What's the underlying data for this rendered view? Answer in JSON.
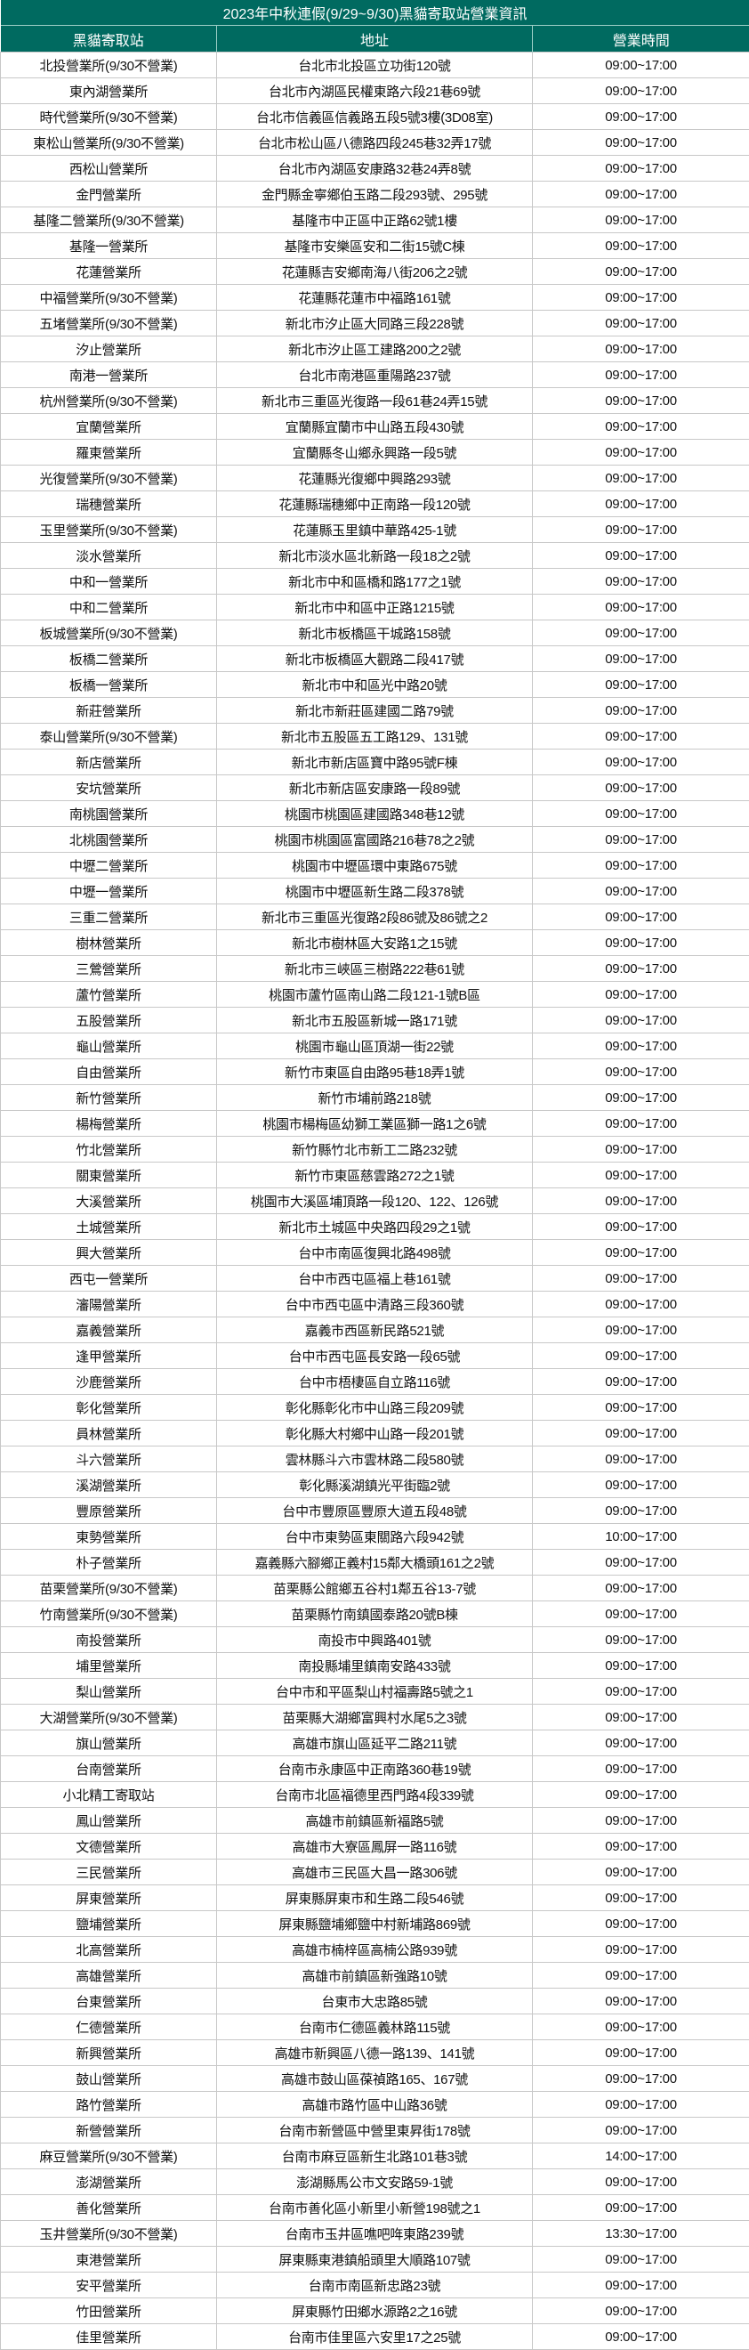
{
  "title": "2023年中秋連假(9/29~9/30)黑貓寄取站營業資訊",
  "columns": [
    "黑貓寄取站",
    "地址",
    "營業時間"
  ],
  "colors": {
    "header_bg": "#006a60",
    "header_text": "#ffffff",
    "border": "#c8c8c8"
  },
  "rows": [
    [
      "北投營業所(9/30不營業)",
      "台北市北投區立功街120號",
      "09:00~17:00"
    ],
    [
      "東內湖營業所",
      "台北市內湖區民權東路六段21巷69號",
      "09:00~17:00"
    ],
    [
      "時代營業所(9/30不營業)",
      "台北市信義區信義路五段5號3樓(3D08室)",
      "09:00~17:00"
    ],
    [
      "東松山營業所(9/30不營業)",
      "台北市松山區八德路四段245巷32弄17號",
      "09:00~17:00"
    ],
    [
      "西松山營業所",
      "台北市內湖區安康路32巷24弄8號",
      "09:00~17:00"
    ],
    [
      "金門營業所",
      "金門縣金寧鄉伯玉路二段293號、295號",
      "09:00~17:00"
    ],
    [
      "基隆二營業所(9/30不營業)",
      "基隆市中正區中正路62號1樓",
      "09:00~17:00"
    ],
    [
      "基隆一營業所",
      "基隆市安樂區安和二街15號C棟",
      "09:00~17:00"
    ],
    [
      "花蓮營業所",
      "花蓮縣吉安鄉南海八街206之2號",
      "09:00~17:00"
    ],
    [
      "中福營業所(9/30不營業)",
      "花蓮縣花蓮市中福路161號",
      "09:00~17:00"
    ],
    [
      "五堵營業所(9/30不營業)",
      "新北市汐止區大同路三段228號",
      "09:00~17:00"
    ],
    [
      "汐止營業所",
      "新北市汐止區工建路200之2號",
      "09:00~17:00"
    ],
    [
      "南港一營業所",
      "台北市南港區重陽路237號",
      "09:00~17:00"
    ],
    [
      "杭州營業所(9/30不營業)",
      "新北市三重區光復路一段61巷24弄15號",
      "09:00~17:00"
    ],
    [
      "宜蘭營業所",
      "宜蘭縣宜蘭市中山路五段430號",
      "09:00~17:00"
    ],
    [
      "羅東營業所",
      "宜蘭縣冬山鄉永興路一段5號",
      "09:00~17:00"
    ],
    [
      "光復營業所(9/30不營業)",
      "花蓮縣光復鄉中興路293號",
      "09:00~17:00"
    ],
    [
      "瑞穗營業所",
      "花蓮縣瑞穗鄉中正南路一段120號",
      "09:00~17:00"
    ],
    [
      "玉里營業所(9/30不營業)",
      "花蓮縣玉里鎮中華路425-1號",
      "09:00~17:00"
    ],
    [
      "淡水營業所",
      "新北市淡水區北新路一段18之2號",
      "09:00~17:00"
    ],
    [
      "中和一營業所",
      "新北市中和區橋和路177之1號",
      "09:00~17:00"
    ],
    [
      "中和二營業所",
      "新北市中和區中正路1215號",
      "09:00~17:00"
    ],
    [
      "板城營業所(9/30不營業)",
      "新北市板橋區干城路158號",
      "09:00~17:00"
    ],
    [
      "板橋二營業所",
      "新北市板橋區大觀路二段417號",
      "09:00~17:00"
    ],
    [
      "板橋一營業所",
      "新北市中和區光中路20號",
      "09:00~17:00"
    ],
    [
      "新莊營業所",
      "新北市新莊區建國二路79號",
      "09:00~17:00"
    ],
    [
      "泰山營業所(9/30不營業)",
      "新北市五股區五工路129、131號",
      "09:00~17:00"
    ],
    [
      "新店營業所",
      "新北市新店區寶中路95號F棟",
      "09:00~17:00"
    ],
    [
      "安坑營業所",
      "新北市新店區安康路一段89號",
      "09:00~17:00"
    ],
    [
      "南桃園營業所",
      "桃園市桃園區建國路348巷12號",
      "09:00~17:00"
    ],
    [
      "北桃園營業所",
      "桃園市桃園區富國路216巷78之2號",
      "09:00~17:00"
    ],
    [
      "中壢二營業所",
      "桃園市中壢區環中東路675號",
      "09:00~17:00"
    ],
    [
      "中壢一營業所",
      "桃園市中壢區新生路二段378號",
      "09:00~17:00"
    ],
    [
      "三重二營業所",
      "新北市三重區光復路2段86號及86號之2",
      "09:00~17:00"
    ],
    [
      "樹林營業所",
      "新北市樹林區大安路1之15號",
      "09:00~17:00"
    ],
    [
      "三鶯營業所",
      "新北市三峽區三樹路222巷61號",
      "09:00~17:00"
    ],
    [
      "蘆竹營業所",
      "桃園市蘆竹區南山路二段121-1號B區",
      "09:00~17:00"
    ],
    [
      "五股營業所",
      "新北市五股區新城一路171號",
      "09:00~17:00"
    ],
    [
      "龜山營業所",
      "桃園市龜山區頂湖一街22號",
      "09:00~17:00"
    ],
    [
      "自由營業所",
      "新竹市東區自由路95巷18弄1號",
      "09:00~17:00"
    ],
    [
      "新竹營業所",
      "新竹市埔前路218號",
      "09:00~17:00"
    ],
    [
      "楊梅營業所",
      "桃園市楊梅區幼獅工業區獅一路1之6號",
      "09:00~17:00"
    ],
    [
      "竹北營業所",
      "新竹縣竹北市新工二路232號",
      "09:00~17:00"
    ],
    [
      "關東營業所",
      "新竹市東區慈雲路272之1號",
      "09:00~17:00"
    ],
    [
      "大溪營業所",
      "桃園市大溪區埔頂路一段120、122、126號",
      "09:00~17:00"
    ],
    [
      "土城營業所",
      "新北市土城區中央路四段29之1號",
      "09:00~17:00"
    ],
    [
      "興大營業所",
      "台中市南區復興北路498號",
      "09:00~17:00"
    ],
    [
      "西屯一營業所",
      "台中市西屯區福上巷161號",
      "09:00~17:00"
    ],
    [
      "瀋陽營業所",
      "台中市西屯區中清路三段360號",
      "09:00~17:00"
    ],
    [
      "嘉義營業所",
      "嘉義市西區新民路521號",
      "09:00~17:00"
    ],
    [
      "逢甲營業所",
      "台中市西屯區長安路一段65號",
      "09:00~17:00"
    ],
    [
      "沙鹿營業所",
      "台中市梧棲區自立路116號",
      "09:00~17:00"
    ],
    [
      "彰化營業所",
      "彰化縣彰化市中山路三段209號",
      "09:00~17:00"
    ],
    [
      "員林營業所",
      "彰化縣大村鄉中山路一段201號",
      "09:00~17:00"
    ],
    [
      "斗六營業所",
      "雲林縣斗六市雲林路二段580號",
      "09:00~17:00"
    ],
    [
      "溪湖營業所",
      "彰化縣溪湖鎮光平街臨2號",
      "09:00~17:00"
    ],
    [
      "豐原營業所",
      "台中市豐原區豐原大道五段48號",
      "09:00~17:00"
    ],
    [
      "東勢營業所",
      "台中市東勢區東關路六段942號",
      "10:00~17:00"
    ],
    [
      "朴子營業所",
      "嘉義縣六腳鄉正義村15鄰大橋頭161之2號",
      "09:00~17:00"
    ],
    [
      "苗栗營業所(9/30不營業)",
      "苗栗縣公館鄉五谷村1鄰五谷13-7號",
      "09:00~17:00"
    ],
    [
      "竹南營業所(9/30不營業)",
      "苗栗縣竹南鎮國泰路20號B棟",
      "09:00~17:00"
    ],
    [
      "南投營業所",
      "南投市中興路401號",
      "09:00~17:00"
    ],
    [
      "埔里營業所",
      "南投縣埔里鎮南安路433號",
      "09:00~17:00"
    ],
    [
      "梨山營業所",
      "台中市和平區梨山村福壽路5號之1",
      "09:00~17:00"
    ],
    [
      "大湖營業所(9/30不營業)",
      "苗栗縣大湖鄉富興村水尾5之3號",
      "09:00~17:00"
    ],
    [
      "旗山營業所",
      "高雄市旗山區延平二路211號",
      "09:00~17:00"
    ],
    [
      "台南營業所",
      "台南市永康區中正南路360巷19號",
      "09:00~17:00"
    ],
    [
      "小北精工寄取站",
      "台南市北區福德里西門路4段339號",
      "09:00~17:00"
    ],
    [
      "鳳山營業所",
      "高雄市前鎮區新福路5號",
      "09:00~17:00"
    ],
    [
      "文德營業所",
      "高雄市大寮區鳳屏一路116號",
      "09:00~17:00"
    ],
    [
      "三民營業所",
      "高雄市三民區大昌一路306號",
      "09:00~17:00"
    ],
    [
      "屏東營業所",
      "屏東縣屏東市和生路二段546號",
      "09:00~17:00"
    ],
    [
      "鹽埔營業所",
      "屏東縣鹽埔鄉鹽中村新埔路869號",
      "09:00~17:00"
    ],
    [
      "北高營業所",
      "高雄市楠梓區高楠公路939號",
      "09:00~17:00"
    ],
    [
      "高雄營業所",
      "高雄市前鎮區新強路10號",
      "09:00~17:00"
    ],
    [
      "台東營業所",
      "台東市大忠路85號",
      "09:00~17:00"
    ],
    [
      "仁德營業所",
      "台南市仁德區義林路115號",
      "09:00~17:00"
    ],
    [
      "新興營業所",
      "高雄市新興區八德一路139、141號",
      "09:00~17:00"
    ],
    [
      "鼓山營業所",
      "高雄市鼓山區葆禎路165、167號",
      "09:00~17:00"
    ],
    [
      "路竹營業所",
      "高雄市路竹區中山路36號",
      "09:00~17:00"
    ],
    [
      "新營營業所",
      "台南市新營區中營里東昇街178號",
      "09:00~17:00"
    ],
    [
      "麻豆營業所(9/30不營業)",
      "台南市麻豆區新生北路101巷3號",
      "14:00~17:00"
    ],
    [
      "澎湖營業所",
      "澎湖縣馬公市文安路59-1號",
      "09:00~17:00"
    ],
    [
      "善化營業所",
      "台南市善化區小新里小新營198號之1",
      "09:00~17:00"
    ],
    [
      "玉井營業所(9/30不營業)",
      "台南市玉井區噍吧哖東路239號",
      "13:30~17:00"
    ],
    [
      "東港營業所",
      "屏東縣東港鎮船頭里大順路107號",
      "09:00~17:00"
    ],
    [
      "安平營業所",
      "台南市南區新忠路23號",
      "09:00~17:00"
    ],
    [
      "竹田營業所",
      "屏東縣竹田鄉水源路2之16號",
      "09:00~17:00"
    ],
    [
      "佳里營業所",
      "台南市佳里區六安里17之25號",
      "09:00~17:00"
    ]
  ]
}
